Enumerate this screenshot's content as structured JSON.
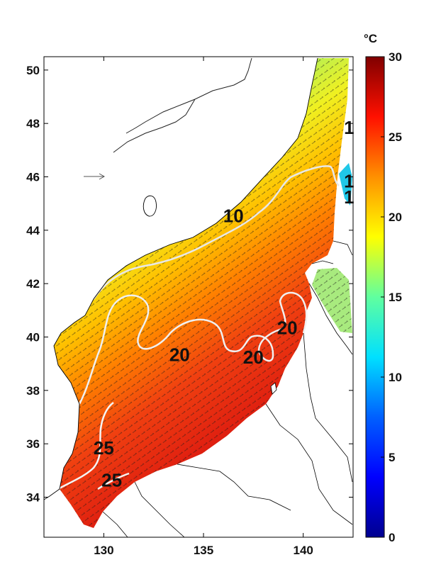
{
  "figure": {
    "colorbar": {
      "unit": "°C",
      "ticks": [
        "0",
        "5",
        "10",
        "15",
        "20",
        "25",
        "30"
      ],
      "range": [
        0,
        30
      ],
      "colormap": [
        "#00008f",
        "#0000ff",
        "#0080ff",
        "#00ffff",
        "#80ff80",
        "#ffff00",
        "#ff8000",
        "#ff0000",
        "#800000"
      ]
    },
    "map": {
      "lon_ticks": [
        "130",
        "135",
        "140"
      ],
      "lat_ticks": [
        "34",
        "36",
        "38",
        "40",
        "42",
        "44",
        "46",
        "48",
        "50"
      ],
      "lon_range": [
        127,
        142.5
      ],
      "lat_range": [
        32.5,
        50.5
      ],
      "contour_labels": [
        {
          "text": "10",
          "lon": 136.5,
          "lat": 44.3
        },
        {
          "text": "20",
          "lon": 133.8,
          "lat": 39.1
        },
        {
          "text": "20",
          "lon": 137.5,
          "lat": 39.0
        },
        {
          "text": "20",
          "lon": 139.2,
          "lat": 40.1
        },
        {
          "text": "25",
          "lon": 130.0,
          "lat": 35.6
        },
        {
          "text": "25",
          "lon": 130.4,
          "lat": 34.4
        },
        {
          "text": "1",
          "lon": 142.3,
          "lat": 47.6
        },
        {
          "text": "1",
          "lon": 142.3,
          "lat": 45.6
        },
        {
          "text": "1",
          "lon": 142.3,
          "lat": 45.0
        }
      ],
      "reference_arrow": {
        "lon": 129.6,
        "lat": 46.0
      }
    }
  }
}
